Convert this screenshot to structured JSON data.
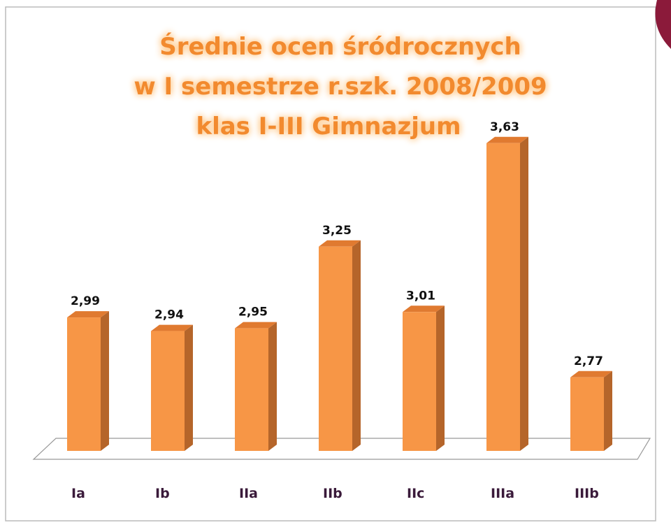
{
  "chart_data": {
    "type": "bar3d",
    "title": [
      "Średnie ocen śródrocznych",
      "w I semestrze  r.szk. 2008/2009",
      "klas I-III  Gimnazjum"
    ],
    "categories": [
      "Ia",
      "Ib",
      "IIa",
      "IIb",
      "IIc",
      "IIIa",
      "IIIb"
    ],
    "values": [
      2.99,
      2.94,
      2.95,
      3.25,
      3.01,
      3.63,
      2.77
    ],
    "value_labels": [
      "2,99",
      "2,94",
      "2,95",
      "3,25",
      "3,01",
      "3,63",
      "2,77"
    ],
    "color": "#f79646",
    "ylim": [
      2.5,
      3.75
    ]
  }
}
